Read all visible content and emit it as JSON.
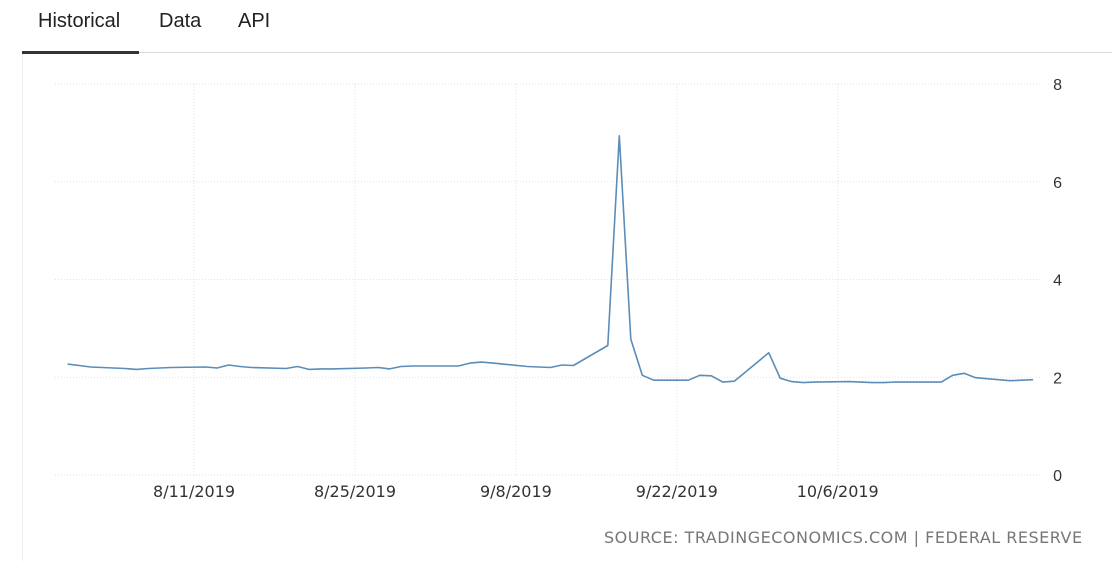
{
  "tabs": [
    {
      "label": "Historical",
      "active": true
    },
    {
      "label": "Data",
      "active": false
    },
    {
      "label": "API",
      "active": false
    }
  ],
  "source_text": "SOURCE: TRADINGECONOMICS.COM | FEDERAL RESERVE",
  "colors": {
    "line": "#5b8db8",
    "grid": "#e2e2e2",
    "tick_text": "#333333"
  },
  "chart_data": {
    "type": "line",
    "title": "",
    "xlabel": "",
    "ylabel": "",
    "ylim": [
      0,
      8
    ],
    "yticks": [
      0,
      2,
      4,
      6,
      8
    ],
    "xticks": [
      "8/11/2019",
      "8/25/2019",
      "9/8/2019",
      "9/22/2019",
      "10/6/2019"
    ],
    "grid": true,
    "legend": "none",
    "y_axis_side": "right",
    "series": [
      {
        "x": [
          "7/31/2019",
          "8/1/2019",
          "8/2/2019",
          "8/5/2019",
          "8/6/2019",
          "8/7/2019",
          "8/8/2019",
          "8/9/2019",
          "8/12/2019",
          "8/13/2019",
          "8/14/2019",
          "8/15/2019",
          "8/16/2019",
          "8/19/2019",
          "8/20/2019",
          "8/21/2019",
          "8/22/2019",
          "8/23/2019",
          "8/26/2019",
          "8/27/2019",
          "8/28/2019",
          "8/29/2019",
          "8/30/2019",
          "9/3/2019",
          "9/4/2019",
          "9/5/2019",
          "9/6/2019",
          "9/9/2019",
          "9/10/2019",
          "9/11/2019",
          "9/12/2019",
          "9/13/2019",
          "9/16/2019",
          "9/17/2019",
          "9/18/2019",
          "9/19/2019",
          "9/20/2019",
          "9/23/2019",
          "9/24/2019",
          "9/25/2019",
          "9/26/2019",
          "9/27/2019",
          "9/30/2019",
          "10/1/2019",
          "10/2/2019",
          "10/3/2019",
          "10/4/2019",
          "10/7/2019",
          "10/8/2019",
          "10/9/2019",
          "10/10/2019",
          "10/11/2019",
          "10/15/2019",
          "10/16/2019",
          "10/17/2019",
          "10/18/2019",
          "10/21/2019",
          "10/22/2019",
          "10/23/2019"
        ],
        "values": [
          2.27,
          2.24,
          2.21,
          2.18,
          2.16,
          2.18,
          2.19,
          2.2,
          2.21,
          2.19,
          2.25,
          2.22,
          2.2,
          2.18,
          2.22,
          2.16,
          2.17,
          2.17,
          2.19,
          2.2,
          2.17,
          2.22,
          2.23,
          2.23,
          2.29,
          2.31,
          2.29,
          2.22,
          2.21,
          2.2,
          2.25,
          2.24,
          2.65,
          6.94,
          2.78,
          2.04,
          1.94,
          1.94,
          2.04,
          2.03,
          1.9,
          1.92,
          2.5,
          1.98,
          1.91,
          1.89,
          1.9,
          1.91,
          1.9,
          1.89,
          1.89,
          1.9,
          1.9,
          2.04,
          2.08,
          1.99,
          1.93,
          1.94,
          1.95
        ]
      }
    ]
  }
}
